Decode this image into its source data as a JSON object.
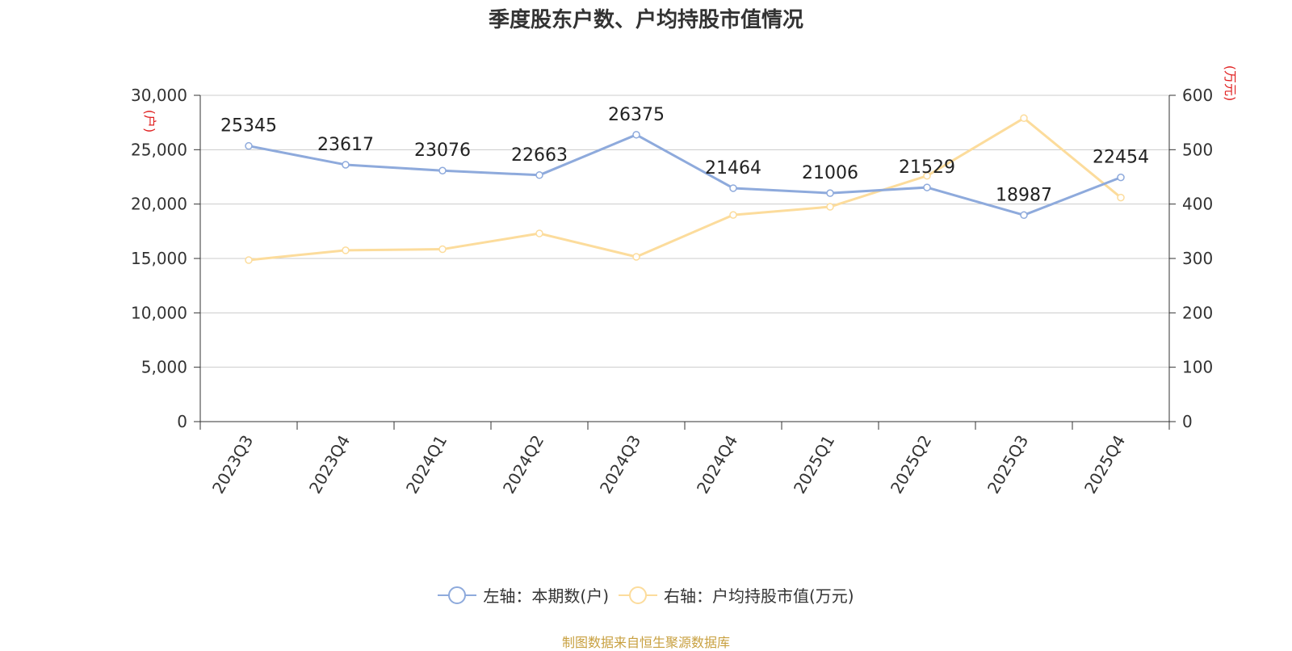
{
  "title": "季度股东户数、户均持股市值情况",
  "source_note": "制图数据来自恒生聚源数据库",
  "colors": {
    "left_series": "#8eaadc",
    "right_series": "#fcdc9c",
    "axis_name": "#e02020",
    "grid": "#cccccc",
    "axis": "#333333",
    "source": "#c8a040"
  },
  "legend": [
    {
      "label": "左轴：本期数(户)",
      "color": "#8eaadc",
      "icon": "circle-line-icon"
    },
    {
      "label": "右轴：户均持股市值(万元)",
      "color": "#fcdc9c",
      "icon": "circle-line-icon"
    }
  ],
  "chart_data": {
    "type": "line",
    "categories": [
      "2023Q3",
      "2023Q4",
      "2024Q1",
      "2024Q2",
      "2024Q3",
      "2024Q4",
      "2025Q1",
      "2025Q2",
      "2025Q3",
      "2025Q4"
    ],
    "y_left": {
      "label": "(户)",
      "ylim": [
        0,
        30000
      ],
      "ticks": [
        "0",
        "5,000",
        "10,000",
        "15,000",
        "20,000",
        "25,000",
        "30,000"
      ]
    },
    "y_right": {
      "label": "(万元)",
      "ylim": [
        0,
        600
      ],
      "ticks": [
        "0",
        "100",
        "200",
        "300",
        "400",
        "500",
        "600"
      ]
    },
    "series": [
      {
        "name": "左轴：本期数(户)",
        "axis": "left",
        "color": "#8eaadc",
        "show_labels": true,
        "values": [
          25345,
          23617,
          23076,
          22663,
          26375,
          21464,
          21006,
          21529,
          18987,
          22454
        ]
      },
      {
        "name": "右轴：户均持股市值(万元)",
        "axis": "right",
        "color": "#fcdc9c",
        "show_labels": false,
        "values": [
          297,
          315,
          317,
          346,
          303,
          380,
          395,
          452,
          558,
          412
        ]
      }
    ],
    "grid": true,
    "legend_position": "bottom"
  }
}
